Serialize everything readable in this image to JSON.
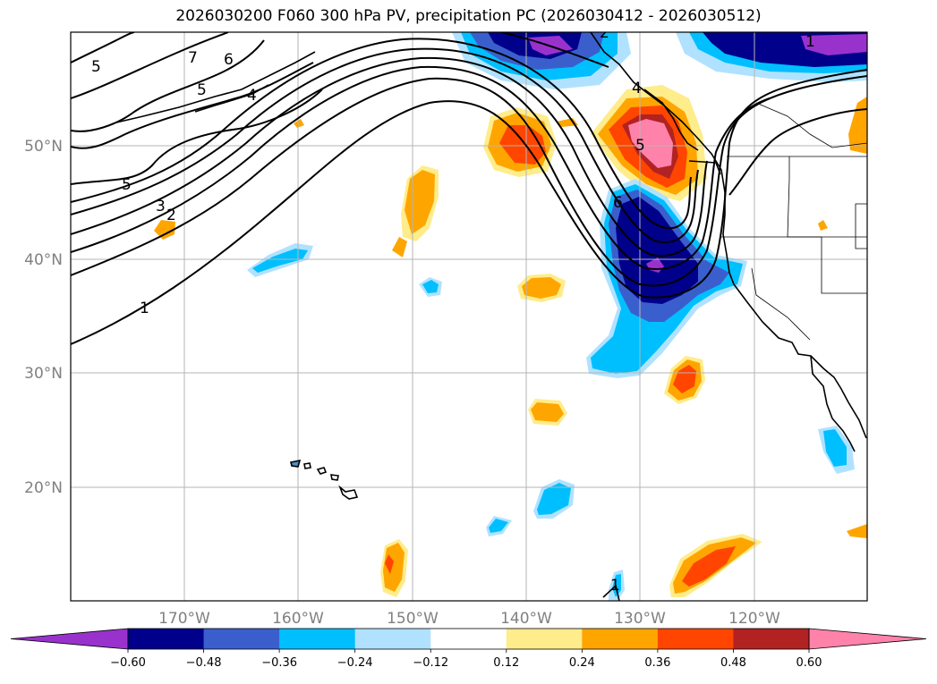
{
  "title": "2026030200 F060 300 hPa PV, precipitation PC (2026030412 - 2026030512)",
  "map": {
    "lon_labels": [
      "170°W",
      "160°W",
      "150°W",
      "140°W",
      "130°W",
      "120°W"
    ],
    "lat_labels": [
      "50°N",
      "40°N",
      "30°N",
      "20°N"
    ],
    "gridlines": true,
    "contour_field": "300 hPa PV",
    "contour_labels": [
      "5",
      "7",
      "6",
      "5",
      "4",
      "5",
      "3",
      "2",
      "1",
      "2",
      "1",
      "4",
      "5",
      "6",
      "1"
    ]
  },
  "colorbar": {
    "extend": "both",
    "colors": [
      "#9932cc",
      "#00008b",
      "#3a5fcd",
      "#00bfff",
      "#b0e2ff",
      "#ffffff",
      "#ffec8b",
      "#ffa500",
      "#ff4500",
      "#b22222",
      "#ff82ab"
    ],
    "tick_labels": [
      "−0.60",
      "−0.48",
      "−0.36",
      "−0.24",
      "−0.12",
      "0.12",
      "0.24",
      "0.36",
      "0.48",
      "0.60"
    ]
  }
}
